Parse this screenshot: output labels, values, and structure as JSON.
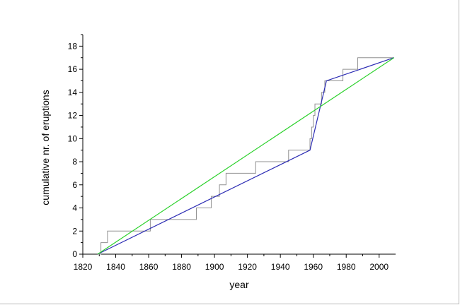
{
  "chart_data": {
    "type": "line",
    "xlabel": "year",
    "ylabel": "cumulative nr. of eruptions",
    "xlim": [
      1820,
      2010
    ],
    "ylim": [
      0,
      19
    ],
    "xticks": [
      1820,
      1840,
      1860,
      1880,
      1900,
      1920,
      1940,
      1960,
      1980,
      2000
    ],
    "yticks": [
      0,
      2,
      4,
      6,
      8,
      10,
      12,
      14,
      16,
      18
    ],
    "grid": false,
    "legend": "none",
    "series": [
      {
        "kind": "step",
        "color": "#909090",
        "x": [
          1829,
          1831,
          1835,
          1861,
          1861,
          1889,
          1898,
          1900,
          1903,
          1907,
          1925,
          1945,
          1958,
          1958,
          1959,
          1960,
          1961,
          1963,
          1965,
          1966,
          1967,
          1968,
          1969,
          1978,
          1980,
          1982,
          1987,
          2009
        ],
        "y": [
          0,
          1,
          2,
          2,
          3,
          4,
          5,
          5,
          6,
          7,
          8,
          9,
          9,
          10,
          11,
          12,
          13,
          13,
          14,
          14,
          15,
          15,
          15,
          16,
          16,
          16,
          17,
          17
        ]
      },
      {
        "kind": "line",
        "color": "#2d2db4",
        "x": [
          1829,
          1958,
          1968,
          2009
        ],
        "y": [
          0,
          9,
          15,
          17
        ]
      },
      {
        "kind": "line",
        "color": "#2bd12b",
        "x": [
          1829,
          2009
        ],
        "y": [
          0,
          17
        ]
      }
    ]
  }
}
